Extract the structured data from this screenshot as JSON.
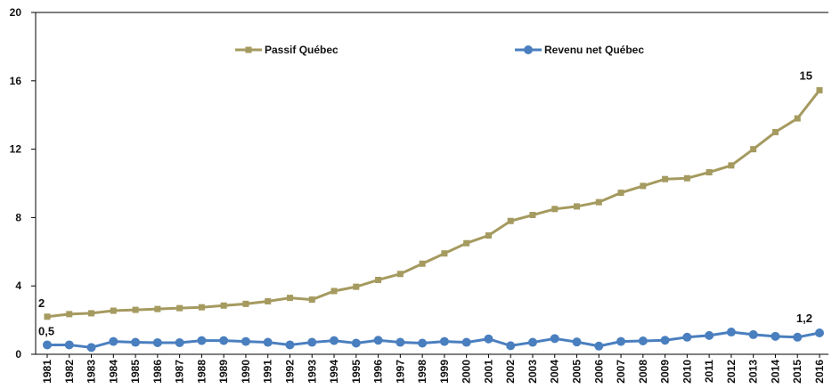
{
  "chart_data": {
    "type": "line",
    "title": "",
    "xlabel": "",
    "ylabel": "",
    "ylim": [
      0,
      20
    ],
    "yticks": [
      0,
      4,
      8,
      12,
      16,
      20
    ],
    "grid": false,
    "legend_position": "top",
    "categories": [
      "1981",
      "1982",
      "1983",
      "1984",
      "1985",
      "1986",
      "1987",
      "1988",
      "1989",
      "1990",
      "1991",
      "1992",
      "1993",
      "1994",
      "1995",
      "1996",
      "1997",
      "1998",
      "1999",
      "2000",
      "2001",
      "2002",
      "2003",
      "2004",
      "2005",
      "2006",
      "2007",
      "2008",
      "2009",
      "2010",
      "2011",
      "2012",
      "2013",
      "2014",
      "2015",
      "2016"
    ],
    "series": [
      {
        "name": "Passif Québec",
        "color": "#a59a5f",
        "marker": "square",
        "values": [
          2.2,
          2.35,
          2.4,
          2.55,
          2.6,
          2.65,
          2.7,
          2.75,
          2.85,
          2.95,
          3.1,
          3.3,
          3.2,
          3.7,
          3.95,
          4.35,
          4.7,
          5.3,
          5.9,
          6.5,
          6.95,
          7.8,
          8.15,
          8.5,
          8.65,
          8.9,
          9.45,
          9.85,
          10.25,
          10.3,
          10.65,
          11.05,
          12.0,
          13.0,
          13.8,
          15.45
        ]
      },
      {
        "name": "Revenu net Québec",
        "color": "#4a7fbf",
        "marker": "circle",
        "values": [
          0.55,
          0.55,
          0.4,
          0.75,
          0.7,
          0.68,
          0.68,
          0.8,
          0.8,
          0.75,
          0.7,
          0.55,
          0.7,
          0.8,
          0.65,
          0.82,
          0.7,
          0.65,
          0.75,
          0.7,
          0.9,
          0.5,
          0.7,
          0.92,
          0.72,
          0.48,
          0.75,
          0.78,
          0.82,
          1.0,
          1.1,
          1.3,
          1.15,
          1.05,
          1.0,
          1.25
        ]
      }
    ],
    "annotations": [
      {
        "series": 0,
        "index": 0,
        "text": "2"
      },
      {
        "series": 1,
        "index": 0,
        "text": "0,5"
      },
      {
        "series": 0,
        "index": 35,
        "text": "15"
      },
      {
        "series": 1,
        "index": 35,
        "text": "1,2"
      }
    ]
  }
}
